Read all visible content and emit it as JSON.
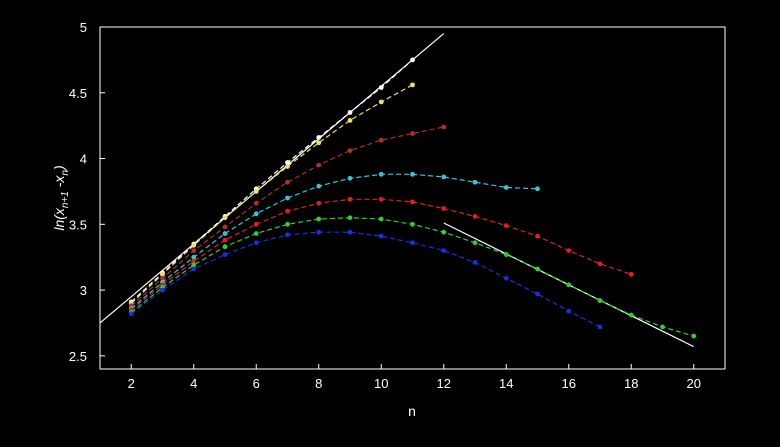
{
  "chart_data": {
    "type": "line",
    "title": "",
    "xlabel": "n",
    "ylabel_parts": [
      "ln(x",
      "n+1",
      " -x",
      "n",
      ")"
    ],
    "xlim": [
      1,
      21
    ],
    "ylim": [
      2.4,
      5
    ],
    "x_ticks": [
      2,
      4,
      6,
      8,
      10,
      12,
      14,
      16,
      18,
      20
    ],
    "y_ticks": [
      2.5,
      3,
      3.5,
      4,
      4.5,
      5
    ],
    "y_tick_labels": [
      "2.5",
      "3",
      "3.5",
      "4",
      "4.5",
      "5"
    ],
    "grid": false,
    "background": "#000000",
    "axis_color": "#ffffff",
    "reference_lines": [
      {
        "color": "#ffffff",
        "points": [
          [
            1,
            2.75
          ],
          [
            12,
            4.95
          ]
        ]
      },
      {
        "color": "#ffffff",
        "points": [
          [
            12,
            3.51
          ],
          [
            20,
            2.57
          ]
        ]
      }
    ],
    "series": [
      {
        "color": "#ffffff",
        "x": [
          2,
          3,
          4,
          5,
          6,
          7,
          8,
          9,
          10,
          11
        ],
        "values": [
          2.91,
          3.13,
          3.35,
          3.56,
          3.77,
          3.97,
          4.16,
          4.35,
          4.54,
          4.75
        ]
      },
      {
        "color": "#f0e060",
        "x": [
          2,
          3,
          4,
          5,
          6,
          7,
          8,
          9,
          10,
          11
        ],
        "values": [
          2.9,
          3.12,
          3.34,
          3.55,
          3.75,
          3.94,
          4.12,
          4.29,
          4.43,
          4.56
        ]
      },
      {
        "color": "#b03028",
        "x": [
          2,
          3,
          4,
          5,
          6,
          7,
          8,
          9,
          10,
          11,
          12
        ],
        "values": [
          2.88,
          3.09,
          3.3,
          3.48,
          3.66,
          3.82,
          3.95,
          4.06,
          4.14,
          4.19,
          4.24
        ]
      },
      {
        "color": "#30c8d8",
        "x": [
          2,
          3,
          4,
          5,
          6,
          7,
          8,
          9,
          10,
          11,
          12,
          13,
          14,
          15
        ],
        "values": [
          2.86,
          3.06,
          3.25,
          3.43,
          3.58,
          3.7,
          3.79,
          3.85,
          3.88,
          3.88,
          3.86,
          3.82,
          3.78,
          3.77
        ]
      },
      {
        "color": "#e02020",
        "x": [
          2,
          3,
          4,
          5,
          6,
          7,
          8,
          9,
          10,
          11,
          12,
          13,
          14,
          15,
          16,
          17,
          18
        ],
        "values": [
          2.85,
          3.04,
          3.22,
          3.38,
          3.5,
          3.6,
          3.66,
          3.69,
          3.69,
          3.67,
          3.62,
          3.56,
          3.49,
          3.41,
          3.3,
          3.2,
          3.12
        ]
      },
      {
        "color": "#30d030",
        "x": [
          2,
          3,
          4,
          5,
          6,
          7,
          8,
          9,
          10,
          11,
          12,
          13,
          14,
          15,
          16,
          17,
          18,
          19,
          20
        ],
        "values": [
          2.83,
          3.02,
          3.19,
          3.33,
          3.43,
          3.5,
          3.54,
          3.55,
          3.54,
          3.5,
          3.44,
          3.36,
          3.27,
          3.16,
          3.04,
          2.92,
          2.81,
          2.72,
          2.65
        ]
      },
      {
        "color": "#1830e0",
        "x": [
          2,
          3,
          4,
          5,
          6,
          7,
          8,
          9,
          10,
          11,
          12,
          13,
          14,
          15,
          16,
          17
        ],
        "values": [
          2.82,
          3.0,
          3.16,
          3.27,
          3.36,
          3.42,
          3.44,
          3.44,
          3.41,
          3.36,
          3.3,
          3.21,
          3.09,
          2.97,
          2.84,
          2.72
        ]
      }
    ]
  }
}
